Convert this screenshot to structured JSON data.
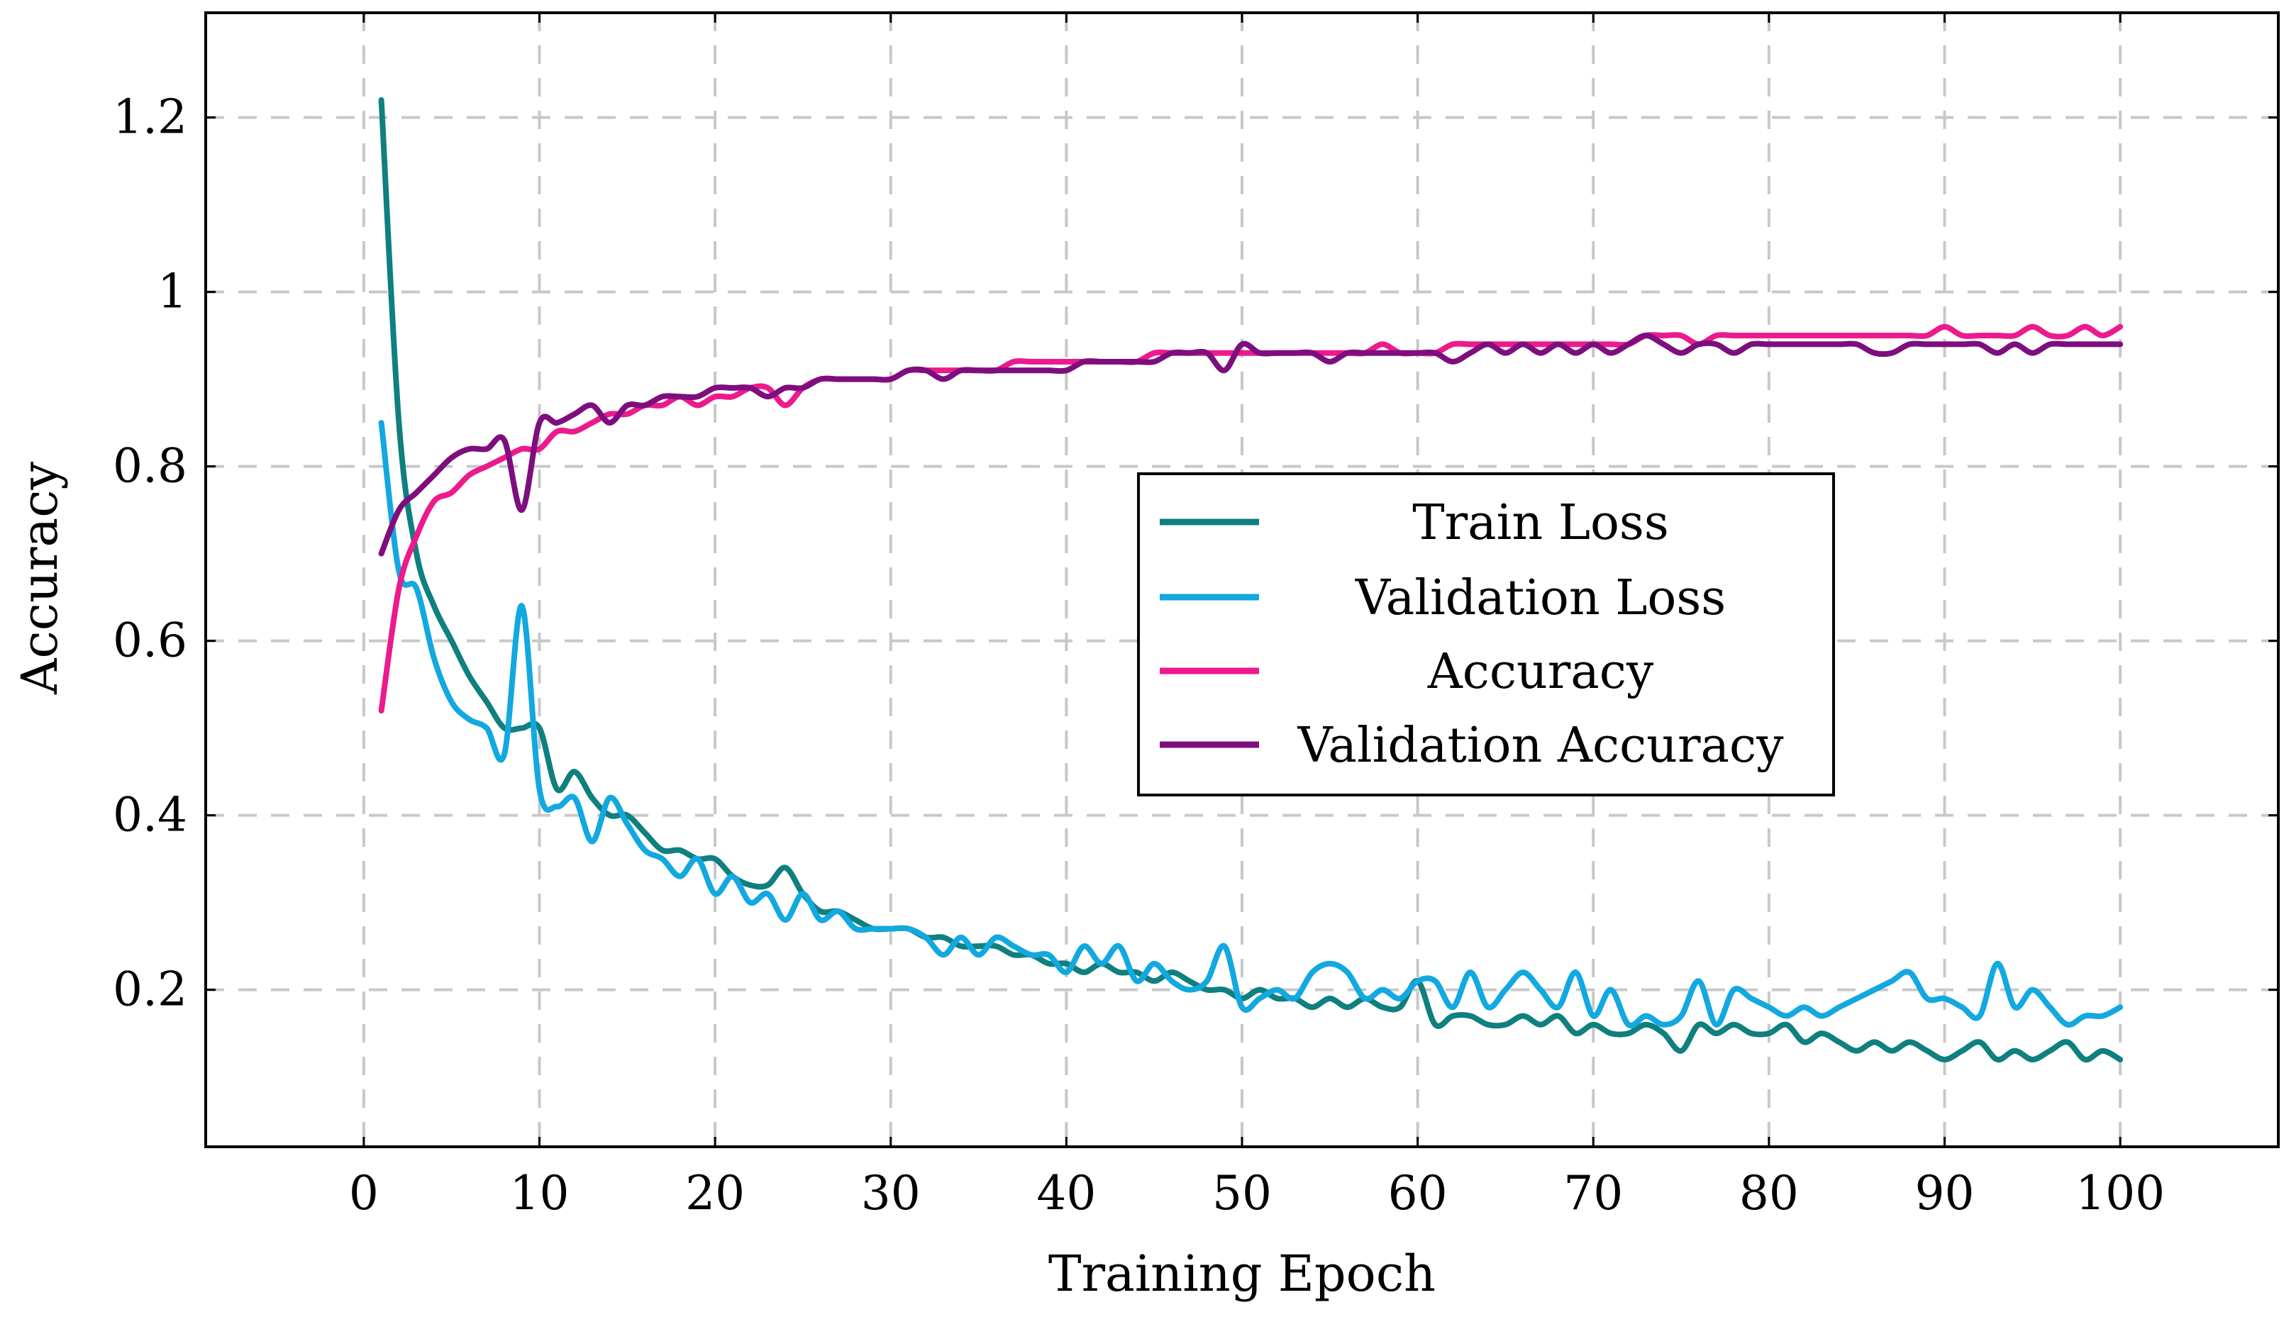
{
  "chart_data": {
    "type": "line",
    "title": "",
    "xlabel": "Training Epoch",
    "ylabel": "Accuracy",
    "xlim": [
      -9,
      109
    ],
    "ylim": [
      0.02,
      1.32
    ],
    "xticks": [
      0,
      10,
      20,
      30,
      40,
      50,
      60,
      70,
      80,
      90,
      100
    ],
    "xtick_labels": [
      "0",
      "10",
      "20",
      "30",
      "40",
      "50",
      "60",
      "70",
      "80",
      "90",
      "100"
    ],
    "yticks": [
      0.2,
      0.4,
      0.6,
      0.8,
      1.0,
      1.2
    ],
    "ytick_labels": [
      "0.2",
      "0.4",
      "0.6",
      "0.8",
      "1",
      "1.2"
    ],
    "grid": true,
    "legend_position": "center-right",
    "x": [
      1,
      2,
      3,
      4,
      5,
      6,
      7,
      8,
      9,
      10,
      11,
      12,
      13,
      14,
      15,
      16,
      17,
      18,
      19,
      20,
      21,
      22,
      23,
      24,
      25,
      26,
      27,
      28,
      29,
      30,
      31,
      32,
      33,
      34,
      35,
      36,
      37,
      38,
      39,
      40,
      41,
      42,
      43,
      44,
      45,
      46,
      47,
      48,
      49,
      50,
      51,
      52,
      53,
      54,
      55,
      56,
      57,
      58,
      59,
      60,
      61,
      62,
      63,
      64,
      65,
      66,
      67,
      68,
      69,
      70,
      71,
      72,
      73,
      74,
      75,
      76,
      77,
      78,
      79,
      80,
      81,
      82,
      83,
      84,
      85,
      86,
      87,
      88,
      89,
      90,
      91,
      92,
      93,
      94,
      95,
      96,
      97,
      98,
      99,
      100
    ],
    "series": [
      {
        "name": "Train Loss",
        "color": "#0f7f7f",
        "values": [
          1.22,
          0.85,
          0.7,
          0.64,
          0.6,
          0.56,
          0.53,
          0.5,
          0.5,
          0.5,
          0.43,
          0.45,
          0.42,
          0.4,
          0.4,
          0.38,
          0.36,
          0.36,
          0.35,
          0.35,
          0.33,
          0.32,
          0.32,
          0.34,
          0.31,
          0.29,
          0.29,
          0.28,
          0.27,
          0.27,
          0.27,
          0.26,
          0.26,
          0.25,
          0.25,
          0.25,
          0.24,
          0.24,
          0.23,
          0.23,
          0.22,
          0.23,
          0.22,
          0.22,
          0.21,
          0.22,
          0.21,
          0.2,
          0.2,
          0.19,
          0.2,
          0.19,
          0.19,
          0.18,
          0.19,
          0.18,
          0.19,
          0.18,
          0.18,
          0.21,
          0.16,
          0.17,
          0.17,
          0.16,
          0.16,
          0.17,
          0.16,
          0.17,
          0.15,
          0.16,
          0.15,
          0.15,
          0.16,
          0.15,
          0.13,
          0.16,
          0.15,
          0.16,
          0.15,
          0.15,
          0.16,
          0.14,
          0.15,
          0.14,
          0.13,
          0.14,
          0.13,
          0.14,
          0.13,
          0.12,
          0.13,
          0.14,
          0.12,
          0.13,
          0.12,
          0.13,
          0.14,
          0.12,
          0.13,
          0.12
        ]
      },
      {
        "name": "Validation Loss",
        "color": "#12a8e0",
        "values": [
          0.85,
          0.68,
          0.66,
          0.58,
          0.53,
          0.51,
          0.5,
          0.47,
          0.64,
          0.43,
          0.41,
          0.42,
          0.37,
          0.42,
          0.39,
          0.36,
          0.35,
          0.33,
          0.35,
          0.31,
          0.33,
          0.3,
          0.31,
          0.28,
          0.31,
          0.28,
          0.29,
          0.27,
          0.27,
          0.27,
          0.27,
          0.26,
          0.24,
          0.26,
          0.24,
          0.26,
          0.25,
          0.24,
          0.24,
          0.22,
          0.25,
          0.23,
          0.25,
          0.21,
          0.23,
          0.21,
          0.2,
          0.21,
          0.25,
          0.18,
          0.19,
          0.2,
          0.19,
          0.22,
          0.23,
          0.22,
          0.19,
          0.2,
          0.19,
          0.21,
          0.21,
          0.18,
          0.22,
          0.18,
          0.2,
          0.22,
          0.2,
          0.18,
          0.22,
          0.17,
          0.2,
          0.16,
          0.17,
          0.16,
          0.17,
          0.21,
          0.16,
          0.2,
          0.19,
          0.18,
          0.17,
          0.18,
          0.17,
          0.18,
          0.19,
          0.2,
          0.21,
          0.22,
          0.19,
          0.19,
          0.18,
          0.17,
          0.23,
          0.18,
          0.2,
          0.18,
          0.16,
          0.17,
          0.17,
          0.18
        ]
      },
      {
        "name": "Accuracy",
        "color": "#ec1a8c",
        "values": [
          0.52,
          0.66,
          0.72,
          0.76,
          0.77,
          0.79,
          0.8,
          0.81,
          0.82,
          0.82,
          0.84,
          0.84,
          0.85,
          0.86,
          0.86,
          0.87,
          0.87,
          0.88,
          0.87,
          0.88,
          0.88,
          0.89,
          0.89,
          0.87,
          0.89,
          0.9,
          0.9,
          0.9,
          0.9,
          0.9,
          0.91,
          0.91,
          0.91,
          0.91,
          0.91,
          0.91,
          0.92,
          0.92,
          0.92,
          0.92,
          0.92,
          0.92,
          0.92,
          0.92,
          0.93,
          0.93,
          0.93,
          0.93,
          0.93,
          0.93,
          0.93,
          0.93,
          0.93,
          0.93,
          0.93,
          0.93,
          0.93,
          0.94,
          0.93,
          0.93,
          0.93,
          0.94,
          0.94,
          0.94,
          0.94,
          0.94,
          0.94,
          0.94,
          0.94,
          0.94,
          0.94,
          0.94,
          0.95,
          0.95,
          0.95,
          0.94,
          0.95,
          0.95,
          0.95,
          0.95,
          0.95,
          0.95,
          0.95,
          0.95,
          0.95,
          0.95,
          0.95,
          0.95,
          0.95,
          0.96,
          0.95,
          0.95,
          0.95,
          0.95,
          0.96,
          0.95,
          0.95,
          0.96,
          0.95,
          0.96
        ]
      },
      {
        "name": "Validation Accuracy",
        "color": "#7e0e7e",
        "values": [
          0.7,
          0.75,
          0.77,
          0.79,
          0.81,
          0.82,
          0.82,
          0.83,
          0.75,
          0.85,
          0.85,
          0.86,
          0.87,
          0.85,
          0.87,
          0.87,
          0.88,
          0.88,
          0.88,
          0.89,
          0.89,
          0.89,
          0.88,
          0.89,
          0.89,
          0.9,
          0.9,
          0.9,
          0.9,
          0.9,
          0.91,
          0.91,
          0.9,
          0.91,
          0.91,
          0.91,
          0.91,
          0.91,
          0.91,
          0.91,
          0.92,
          0.92,
          0.92,
          0.92,
          0.92,
          0.93,
          0.93,
          0.93,
          0.91,
          0.94,
          0.93,
          0.93,
          0.93,
          0.93,
          0.92,
          0.93,
          0.93,
          0.93,
          0.93,
          0.93,
          0.93,
          0.92,
          0.93,
          0.94,
          0.93,
          0.94,
          0.93,
          0.94,
          0.93,
          0.94,
          0.93,
          0.94,
          0.95,
          0.94,
          0.93,
          0.94,
          0.94,
          0.93,
          0.94,
          0.94,
          0.94,
          0.94,
          0.94,
          0.94,
          0.94,
          0.93,
          0.93,
          0.94,
          0.94,
          0.94,
          0.94,
          0.94,
          0.93,
          0.94,
          0.93,
          0.94,
          0.94,
          0.94,
          0.94,
          0.94
        ]
      }
    ]
  }
}
